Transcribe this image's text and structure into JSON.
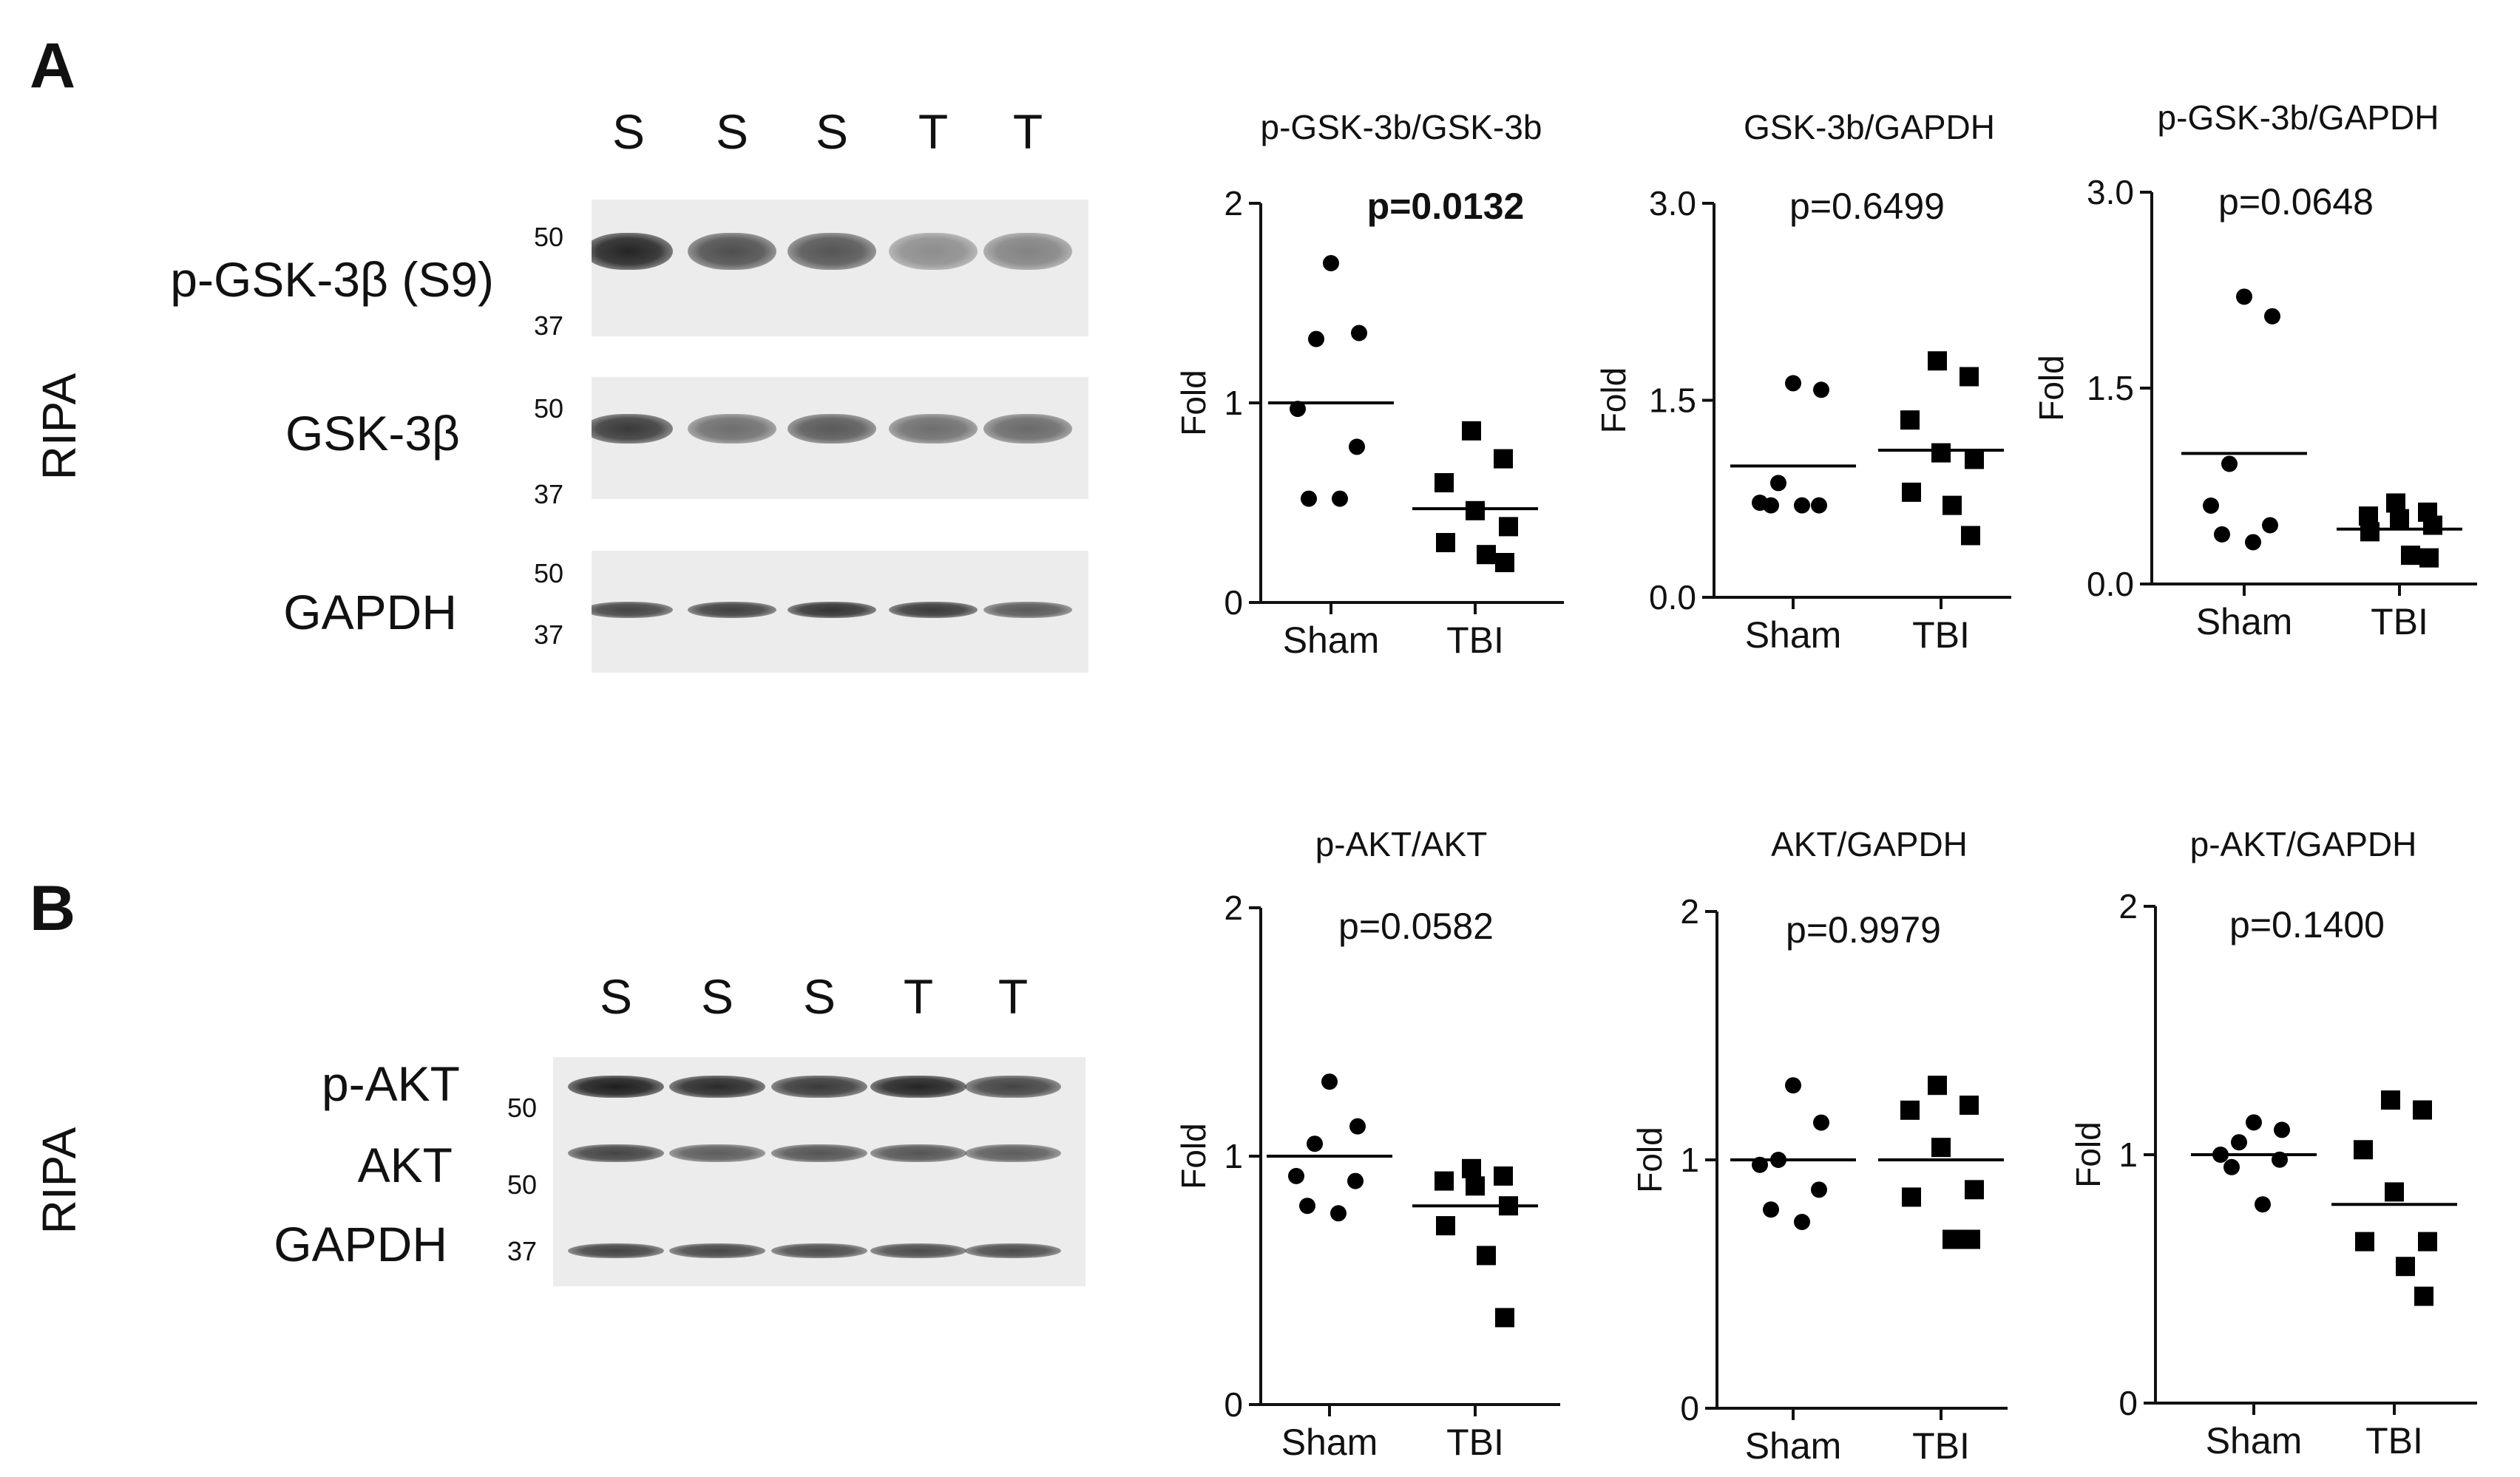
{
  "panel_a": {
    "letter": "A",
    "lanes": [
      "S",
      "S",
      "S",
      "T",
      "T"
    ],
    "side_label": "RIPA",
    "blots": [
      {
        "name": "p-GSK-3β (S9)",
        "mw_top": "50",
        "mw_bottom": "37",
        "band_intensity": [
          0.95,
          0.75,
          0.72,
          0.45,
          0.5
        ]
      },
      {
        "name": "GSK-3β",
        "mw_top": "50",
        "mw_bottom": "37",
        "band_intensity": [
          0.85,
          0.6,
          0.7,
          0.6,
          0.62
        ]
      },
      {
        "name": "GAPDH",
        "mw_top": "50",
        "mw_bottom": "37",
        "band_intensity": [
          0.8,
          0.82,
          0.88,
          0.85,
          0.7
        ]
      }
    ]
  },
  "panel_b": {
    "letter": "B",
    "lanes": [
      "S",
      "S",
      "S",
      "T",
      "T"
    ],
    "side_label": "RIPA",
    "blots": [
      {
        "name": "p-AKT",
        "mw": "50",
        "band_intensity": [
          0.98,
          0.92,
          0.85,
          0.95,
          0.8
        ]
      },
      {
        "name": "AKT",
        "mw": "50",
        "band_intensity": [
          0.8,
          0.68,
          0.72,
          0.72,
          0.68
        ]
      },
      {
        "name": "GAPDH",
        "mw": "37",
        "band_intensity": [
          0.8,
          0.78,
          0.76,
          0.76,
          0.76
        ]
      }
    ]
  },
  "chart_data": [
    {
      "type": "scatter",
      "title": "p-GSK-3b/GSK-3b",
      "ylabel": "Fold",
      "categories": [
        "Sham",
        "TBI"
      ],
      "ylim": [
        0,
        2
      ],
      "yticks": [
        "0",
        "1",
        "2"
      ],
      "pvalue": "p=0.0132",
      "pvalue_bold": true,
      "series": [
        {
          "marker": "circle",
          "values": [
            1.7,
            1.35,
            1.32,
            0.97,
            0.78,
            0.52,
            0.52
          ],
          "mean": 1.0
        },
        {
          "marker": "square",
          "values": [
            0.86,
            0.72,
            0.6,
            0.46,
            0.38,
            0.3,
            0.24,
            0.2
          ],
          "mean": 0.47
        }
      ]
    },
    {
      "type": "scatter",
      "title": "GSK-3b/GAPDH",
      "ylabel": "Fold",
      "categories": [
        "Sham",
        "TBI"
      ],
      "ylim": [
        0,
        3
      ],
      "yticks": [
        "0.0",
        "1.5",
        "3.0"
      ],
      "pvalue": "p=0.6499",
      "pvalue_bold": false,
      "series": [
        {
          "marker": "circle",
          "values": [
            1.63,
            1.58,
            0.87,
            0.72,
            0.7,
            0.7,
            0.7
          ],
          "mean": 1.0
        },
        {
          "marker": "square",
          "values": [
            1.8,
            1.68,
            1.35,
            1.1,
            1.05,
            0.8,
            0.7,
            0.47
          ],
          "mean": 1.12
        }
      ]
    },
    {
      "type": "scatter",
      "title": "p-GSK-3b/GAPDH",
      "ylabel": "Fold",
      "categories": [
        "Sham",
        "TBI"
      ],
      "ylim": [
        0,
        3
      ],
      "yticks": [
        "0.0",
        "1.5",
        "3.0"
      ],
      "pvalue": "p=0.0648",
      "pvalue_bold": false,
      "series": [
        {
          "marker": "circle",
          "values": [
            2.2,
            2.05,
            0.92,
            0.6,
            0.45,
            0.38,
            0.32
          ],
          "mean": 1.0
        },
        {
          "marker": "square",
          "values": [
            0.62,
            0.55,
            0.52,
            0.5,
            0.45,
            0.4,
            0.22,
            0.2
          ],
          "mean": 0.42
        }
      ]
    },
    {
      "type": "scatter",
      "title": "p-AKT/AKT",
      "ylabel": "Fold",
      "categories": [
        "Sham",
        "TBI"
      ],
      "ylim": [
        0,
        2
      ],
      "yticks": [
        "0",
        "1",
        "2"
      ],
      "pvalue": "p=0.0582",
      "pvalue_bold": false,
      "series": [
        {
          "marker": "circle",
          "values": [
            1.3,
            1.12,
            1.05,
            0.92,
            0.9,
            0.8,
            0.77
          ],
          "mean": 1.0
        },
        {
          "marker": "square",
          "values": [
            0.95,
            0.92,
            0.9,
            0.88,
            0.8,
            0.72,
            0.6,
            0.35
          ],
          "mean": 0.8
        }
      ]
    },
    {
      "type": "scatter",
      "title": "AKT/GAPDH",
      "ylabel": "Fold",
      "categories": [
        "Sham",
        "TBI"
      ],
      "ylim": [
        0,
        2
      ],
      "yticks": [
        "0",
        "1",
        "2"
      ],
      "pvalue": "p=0.9979",
      "pvalue_bold": false,
      "series": [
        {
          "marker": "circle",
          "values": [
            1.3,
            1.15,
            1.0,
            0.98,
            0.88,
            0.8,
            0.75
          ],
          "mean": 1.0
        },
        {
          "marker": "square",
          "values": [
            1.3,
            1.22,
            1.2,
            1.05,
            0.88,
            0.85,
            0.68,
            0.68
          ],
          "mean": 1.0
        }
      ]
    },
    {
      "type": "scatter",
      "title": "p-AKT/GAPDH",
      "ylabel": "Fold",
      "categories": [
        "Sham",
        "TBI"
      ],
      "ylim": [
        0,
        2
      ],
      "yticks": [
        "0",
        "1",
        "2"
      ],
      "pvalue": "p=0.1400",
      "pvalue_bold": false,
      "series": [
        {
          "marker": "circle",
          "values": [
            1.13,
            1.1,
            1.05,
            1.0,
            0.98,
            0.95,
            0.8
          ],
          "mean": 1.0
        },
        {
          "marker": "square",
          "values": [
            1.22,
            1.18,
            1.02,
            0.85,
            0.65,
            0.65,
            0.55,
            0.43
          ],
          "mean": 0.8
        }
      ]
    }
  ]
}
